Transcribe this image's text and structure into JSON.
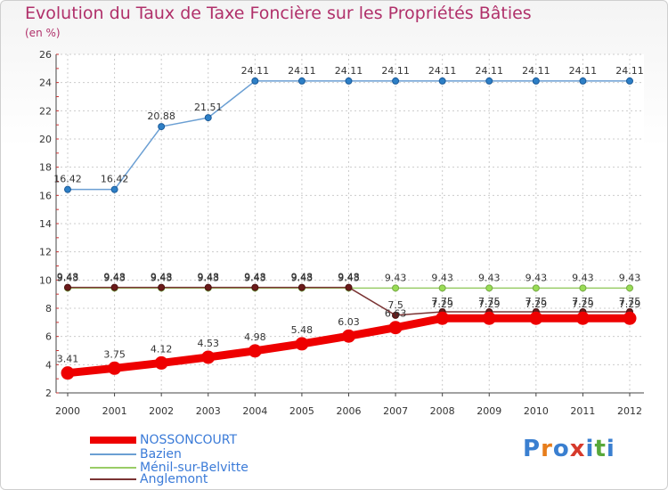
{
  "chart_data": {
    "type": "line",
    "title": "Evolution du Taux de Taxe Foncière sur les Propriétés Bâties",
    "ylabel": "(en %)",
    "xlabel": "",
    "ylim": [
      2,
      26
    ],
    "yticks": [
      2,
      4,
      6,
      8,
      10,
      12,
      14,
      16,
      18,
      20,
      22,
      24,
      26
    ],
    "categories": [
      "2000",
      "2001",
      "2002",
      "2003",
      "2004",
      "2005",
      "2006",
      "2007",
      "2008",
      "2009",
      "2010",
      "2011",
      "2012"
    ],
    "series": [
      {
        "name": "NOSSONCOURT",
        "color": "#ee0000",
        "values": [
          3.41,
          3.75,
          4.12,
          4.53,
          4.98,
          5.48,
          6.03,
          6.63,
          7.29,
          7.29,
          7.29,
          7.29,
          7.29
        ],
        "labels": [
          "3.41",
          "3.75",
          "4.12",
          "4.53",
          "4.98",
          "5.48",
          "6.03",
          "6.63",
          "7.29",
          "7.29",
          "7.29",
          "7.29",
          "7.29"
        ]
      },
      {
        "name": "Bazien",
        "color": "#6b9fd3",
        "values": [
          16.42,
          16.42,
          20.88,
          21.51,
          24.11,
          24.11,
          24.11,
          24.11,
          24.11,
          24.11,
          24.11,
          24.11,
          24.11
        ],
        "labels": [
          "16.42",
          "16.42",
          "20.88",
          "21.51",
          "24.11",
          "24.11",
          "24.11",
          "24.11",
          "24.11",
          "24.11",
          "24.11",
          "24.11",
          "24.11"
        ]
      },
      {
        "name": "Ménil-sur-Belvitte",
        "color": "#99cc66",
        "values": [
          9.43,
          9.43,
          9.43,
          9.43,
          9.43,
          9.43,
          9.43,
          9.43,
          9.43,
          9.43,
          9.43,
          9.43,
          9.43
        ],
        "labels": [
          "9.43",
          "9.43",
          "9.43",
          "9.43",
          "9.43",
          "9.43",
          "9.43",
          "9.43",
          "9.43",
          "9.43",
          "9.43",
          "9.43",
          "9.43"
        ]
      },
      {
        "name": "Anglemont",
        "color": "#7a3333",
        "values": [
          9.48,
          9.48,
          9.48,
          9.48,
          9.48,
          9.48,
          9.48,
          7.5,
          7.75,
          7.75,
          7.75,
          7.75,
          7.75
        ],
        "labels": [
          "9.48",
          "9.48",
          "9.48",
          "9.48",
          "9.48",
          "9.48",
          "9.48",
          "7.5",
          "7.75",
          "7.75",
          "7.75",
          "7.75",
          "7.75"
        ]
      }
    ]
  },
  "brand": {
    "text": "Proxiti",
    "letters": [
      "P",
      "r",
      "o",
      "x",
      "i",
      "t",
      "i"
    ],
    "colors": [
      "#3a7fd0",
      "#e77d1b",
      "#3a7fd0",
      "#d63a2c",
      "#3a7fd0",
      "#58a83a",
      "#3a7fd0"
    ]
  }
}
